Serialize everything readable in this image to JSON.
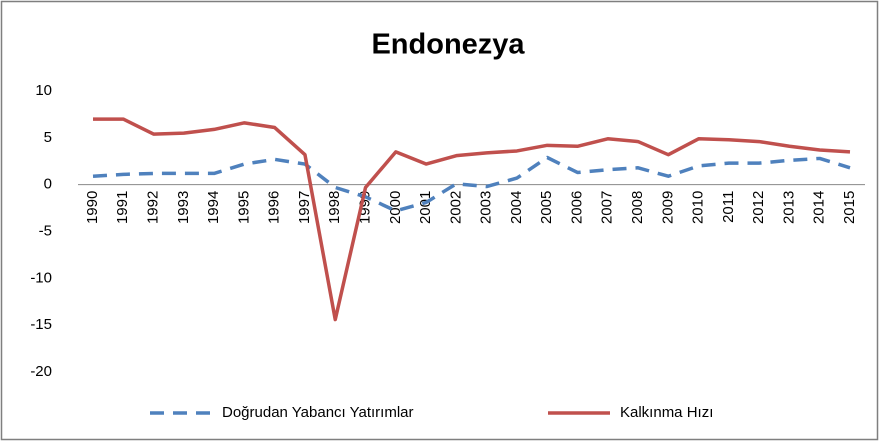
{
  "chart_data": {
    "type": "line",
    "title": "Endonezya",
    "categories": [
      "1990",
      "1991",
      "1992",
      "1993",
      "1994",
      "1995",
      "1996",
      "1997",
      "1998",
      "1999",
      "2000",
      "2001",
      "2002",
      "2003",
      "2004",
      "2005",
      "2006",
      "2007",
      "2008",
      "2009",
      "2010",
      "2011",
      "2012",
      "2013",
      "2014",
      "2015"
    ],
    "series": [
      {
        "name": "Doğrudan Yabancı Yatırımlar",
        "color": "#4f81bd",
        "dashed": true,
        "values": [
          0.9,
          1.1,
          1.2,
          1.2,
          1.2,
          2.2,
          2.7,
          2.2,
          -0.3,
          -1.3,
          -2.8,
          -1.9,
          0.1,
          -0.2,
          0.7,
          2.9,
          1.3,
          1.6,
          1.8,
          0.9,
          2.0,
          2.3,
          2.3,
          2.6,
          2.8,
          1.8
        ]
      },
      {
        "name": "Kalkınma Hızı",
        "color": "#c0504d",
        "dashed": false,
        "values": [
          7.0,
          7.0,
          5.4,
          5.5,
          5.9,
          6.6,
          6.1,
          3.2,
          -14.4,
          -0.3,
          3.5,
          2.2,
          3.1,
          3.4,
          3.6,
          4.2,
          4.1,
          4.9,
          4.6,
          3.2,
          4.9,
          4.8,
          4.6,
          4.1,
          3.7,
          3.5
        ]
      }
    ],
    "ylim": [
      -20,
      10
    ],
    "yticks": [
      -20,
      -15,
      -10,
      -5,
      0,
      5,
      10
    ],
    "grid": false,
    "legend": "bottom"
  }
}
